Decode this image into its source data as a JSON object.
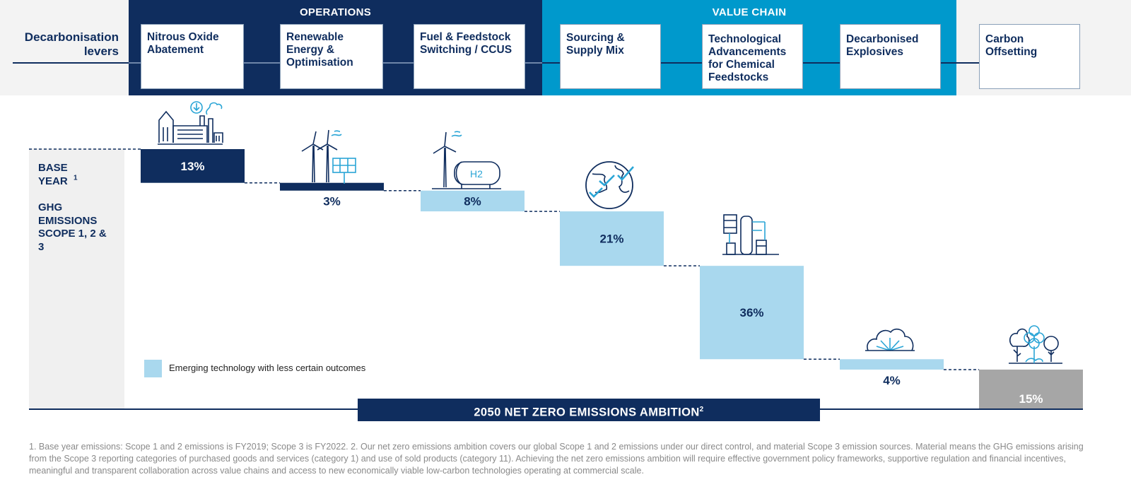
{
  "header": {
    "levers_label": "Decarbonisation levers",
    "groups": [
      {
        "title": "OPERATIONS",
        "color": "#0f2d5e"
      },
      {
        "title": "VALUE CHAIN",
        "color": "#0099cc"
      }
    ],
    "levers": [
      {
        "label": "Nitrous Oxide Abatement"
      },
      {
        "label": "Renewable Energy & Optimisation"
      },
      {
        "label": "Fuel & Feedstock Switching / CCUS"
      },
      {
        "label": "Sourcing & Supply Mix"
      },
      {
        "label": "Technological Advancements for Chemical Feedstocks"
      },
      {
        "label": "Decarbonised Explosives"
      },
      {
        "label": "Carbon Offsetting"
      }
    ]
  },
  "base": {
    "year_label": "BASE YEAR",
    "year_sup": "1",
    "scope_label": "GHG EMISSIONS SCOPE 1, 2 & 3"
  },
  "legend": {
    "label": "Emerging technology with less certain outcomes",
    "color": "#a9d8ee"
  },
  "net_zero": {
    "label": "2050 NET ZERO EMISSIONS AMBITION",
    "sup": "2"
  },
  "footnote": "1. Base year emissions: Scope 1 and 2 emissions is FY2019; Scope 3 is FY2022. 2. Our net zero emissions ambition covers our global Scope 1 and 2 emissions under our direct control, and material Scope 3 emission sources. Material means the GHG emissions arising from the Scope 3 reporting categories of purchased goods and services (category 1) and use of sold products (category 11). Achieving the net zero emissions ambition will require effective government policy frameworks, supportive regulation and financial incentives, meaningful and transparent collaboration across value chains and access to new economically viable low-carbon technologies operating at commercial scale.",
  "colors": {
    "navy": "#0f2d5e",
    "light_blue": "#a9d8ee",
    "offset_gray": "#a6a6a6",
    "value_chain_blue": "#0099cc"
  },
  "chart_data": {
    "type": "waterfall",
    "unit": "%",
    "start_total": 100,
    "categories": [
      "Nitrous Oxide Abatement",
      "Renewable Energy & Optimisation",
      "Fuel & Feedstock Switching / CCUS",
      "Sourcing & Supply Mix",
      "Technological Advancements for Chemical Feedstocks",
      "Decarbonised Explosives",
      "Carbon Offsetting"
    ],
    "values": [
      13,
      3,
      8,
      21,
      36,
      4,
      15
    ],
    "labels": [
      "13%",
      "3%",
      "8%",
      "21%",
      "36%",
      "4%",
      "15%"
    ],
    "emerging": [
      false,
      false,
      true,
      true,
      true,
      true,
      false
    ],
    "end_total": 0
  }
}
